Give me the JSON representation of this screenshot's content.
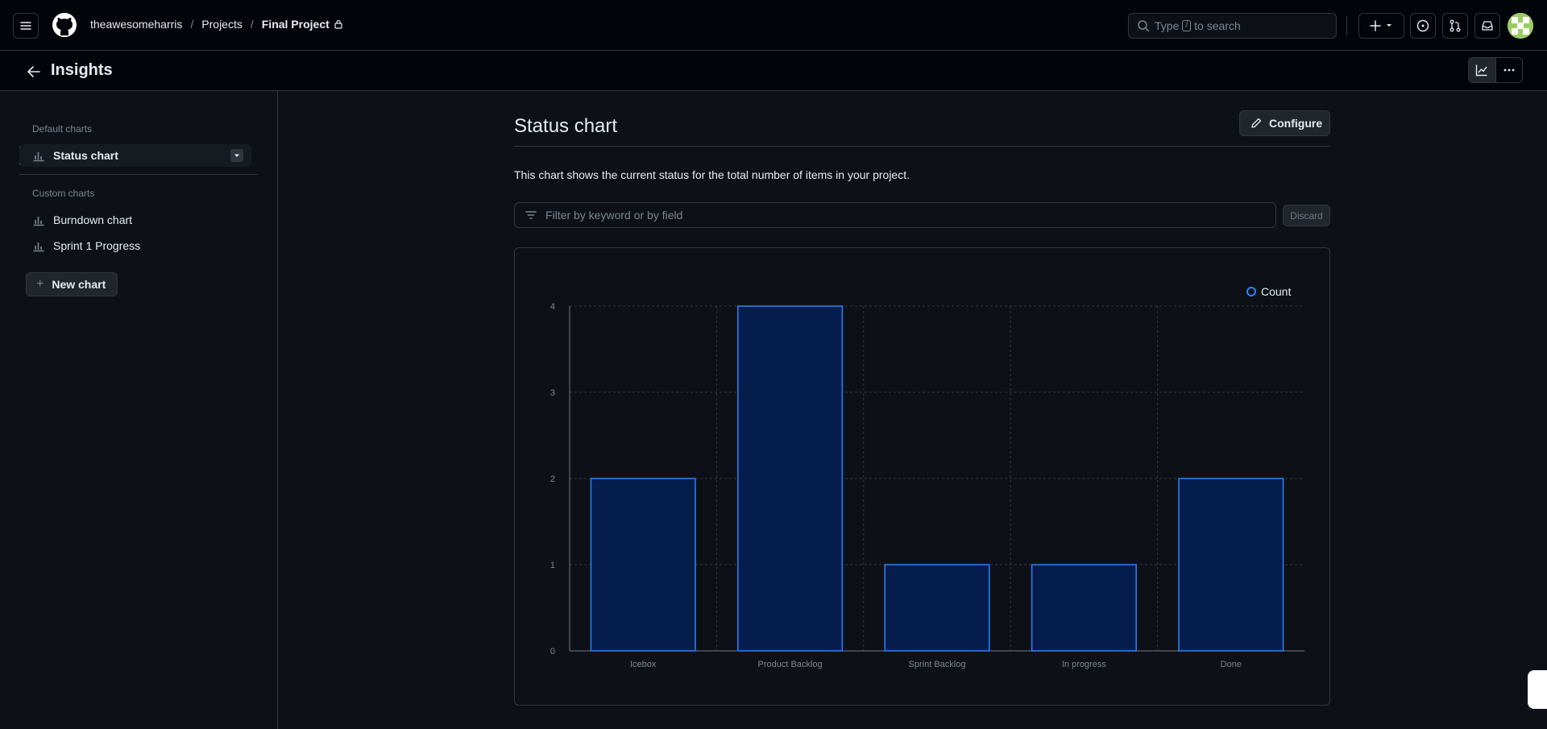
{
  "header": {
    "breadcrumb": [
      "theawesomeharris",
      "Projects",
      "Final Project"
    ],
    "search_prefix": "Type",
    "search_key": "/",
    "search_suffix": "to search"
  },
  "insights": {
    "title": "Insights"
  },
  "sidebar": {
    "default_label": "Default charts",
    "default_items": [
      {
        "label": "Status chart"
      }
    ],
    "custom_label": "Custom charts",
    "custom_items": [
      {
        "label": "Burndown chart"
      },
      {
        "label": "Sprint 1 Progress"
      }
    ],
    "new_chart": "New chart"
  },
  "main": {
    "title": "Status chart",
    "configure": "Configure",
    "description": "This chart shows the current status for the total number of items in your project.",
    "filter_placeholder": "Filter by keyword or by field",
    "discard": "Discard"
  },
  "colors": {
    "accent": "#2f81f7",
    "bar_fill": "#051d4d",
    "bg": "#0d1117",
    "border": "#30363d"
  },
  "chart_data": {
    "type": "bar",
    "categories": [
      "Icebox",
      "Product Backlog",
      "Sprint Backlog",
      "In progress",
      "Done"
    ],
    "series": [
      {
        "name": "Count",
        "values": [
          2,
          4,
          1,
          1,
          2
        ]
      }
    ],
    "ylim": [
      0,
      4
    ],
    "yticks": [
      "0",
      "1",
      "2",
      "3",
      "4"
    ],
    "grid": true,
    "legend": "top-right"
  }
}
